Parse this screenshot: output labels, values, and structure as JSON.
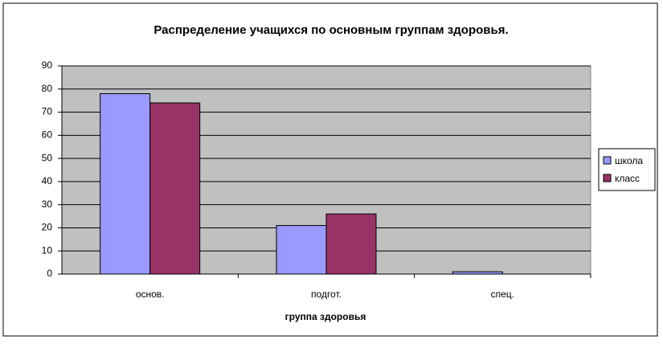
{
  "chart_data": {
    "type": "bar",
    "title": "Распределение учащихся по основным группам здоровья.",
    "x_label": "группа здоровья",
    "categories": [
      "основ.",
      "подгот.",
      "спец."
    ],
    "series": [
      {
        "name": "школа",
        "color": "#9999ff",
        "values": [
          78,
          21,
          1
        ]
      },
      {
        "name": "класс",
        "color": "#993366",
        "values": [
          74,
          26,
          0
        ]
      }
    ],
    "ylim": [
      0,
      90
    ],
    "yticks": [
      0,
      10,
      20,
      30,
      40,
      50,
      60,
      70,
      80,
      90
    ],
    "grid": true,
    "legend": "right"
  }
}
